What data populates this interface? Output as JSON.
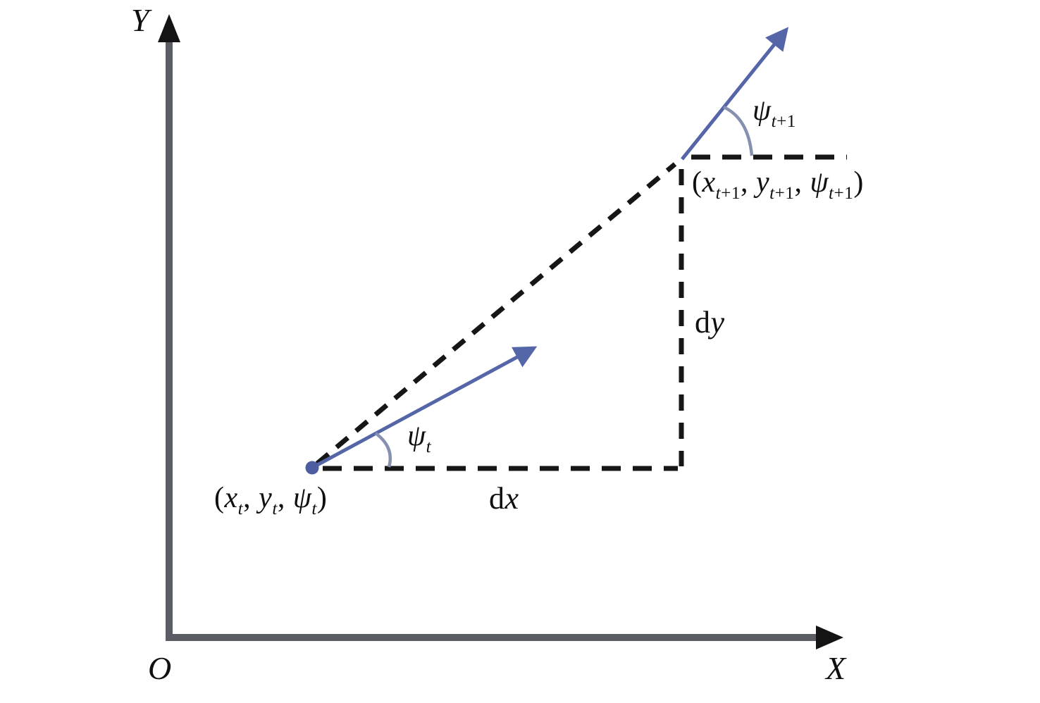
{
  "figure": {
    "colors": {
      "background": "#ffffff",
      "axis": "#5a5d64",
      "axis_arrowhead": "#141414",
      "dashed": "#161616",
      "pose_arrow": "#5465a8",
      "pose_dot": "#4d5ca0",
      "angle_arc": "#8691b0",
      "text": "#101010"
    },
    "labels": {
      "y_axis": {
        "segments": [
          {
            "t": "Y"
          }
        ]
      },
      "x_axis": {
        "segments": [
          {
            "t": "X"
          }
        ]
      },
      "origin": {
        "segments": [
          {
            "t": "O"
          }
        ]
      },
      "pose_t": {
        "segments": [
          {
            "t": "(",
            "rm": true
          },
          {
            "t": "x"
          },
          {
            "t": "t",
            "sub": true
          },
          {
            "t": ", ",
            "rm": true
          },
          {
            "t": "y"
          },
          {
            "t": "t",
            "sub": true
          },
          {
            "t": ", ",
            "rm": true
          },
          {
            "t": "ψ"
          },
          {
            "t": "t",
            "sub": true
          },
          {
            "t": ")",
            "rm": true
          }
        ]
      },
      "pose_t_plus_1": {
        "segments": [
          {
            "t": "(",
            "rm": true
          },
          {
            "t": "x"
          },
          {
            "t": "t",
            "sub": true
          },
          {
            "t": "+1",
            "sub": true,
            "rm": true
          },
          {
            "t": ", ",
            "rm": true
          },
          {
            "t": "y"
          },
          {
            "t": "t",
            "sub": true
          },
          {
            "t": "+1",
            "sub": true,
            "rm": true
          },
          {
            "t": ", ",
            "rm": true
          },
          {
            "t": "ψ"
          },
          {
            "t": "t",
            "sub": true
          },
          {
            "t": "+1",
            "sub": true,
            "rm": true
          },
          {
            "t": ")",
            "rm": true
          }
        ]
      },
      "heading_t": {
        "segments": [
          {
            "t": "ψ"
          },
          {
            "t": "t",
            "sub": true
          }
        ]
      },
      "heading_t_plus_1": {
        "segments": [
          {
            "t": "ψ"
          },
          {
            "t": "t",
            "sub": true
          },
          {
            "t": "+1",
            "sub": true,
            "rm": true
          }
        ]
      },
      "dx": {
        "segments": [
          {
            "t": "d",
            "rm": true
          },
          {
            "t": "x"
          }
        ]
      },
      "dy": {
        "segments": [
          {
            "t": "d",
            "rm": true
          },
          {
            "t": "y"
          }
        ]
      }
    }
  }
}
